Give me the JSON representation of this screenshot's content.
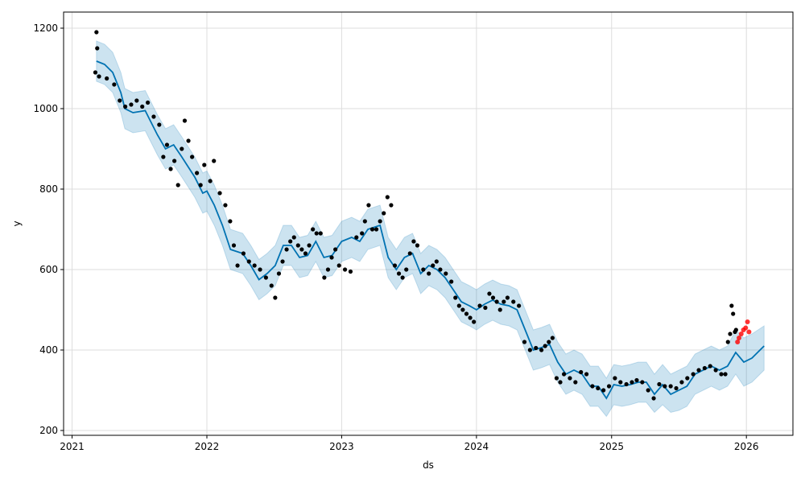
{
  "chart_data": {
    "type": "line",
    "title": "",
    "xlabel": "ds",
    "ylabel": "y",
    "xlim": [
      "2020-12-09",
      "2026-05-07"
    ],
    "ylim": [
      188,
      1240
    ],
    "yticks": [
      200,
      400,
      600,
      800,
      1000,
      1200
    ],
    "xticks": [
      "2021",
      "2022",
      "2023",
      "2024",
      "2025",
      "2026"
    ],
    "grid": true,
    "colors": {
      "forecast": "#0072B2",
      "band": "#0072B2",
      "actual": "#000000",
      "future_actual": "#ff0000"
    },
    "forecast": [
      [
        "2021-03-08",
        1118,
        1068,
        1168
      ],
      [
        "2021-03-30",
        1110,
        1060,
        1160
      ],
      [
        "2021-04-21",
        1090,
        1040,
        1140
      ],
      [
        "2021-05-13",
        1040,
        990,
        1090
      ],
      [
        "2021-05-24",
        1000,
        950,
        1050
      ],
      [
        "2021-06-15",
        990,
        940,
        1040
      ],
      [
        "2021-07-18",
        995,
        945,
        1045
      ],
      [
        "2021-07-29",
        975,
        925,
        1025
      ],
      [
        "2021-08-20",
        935,
        885,
        985
      ],
      [
        "2021-09-11",
        900,
        850,
        950
      ],
      [
        "2021-10-03",
        910,
        860,
        960
      ],
      [
        "2021-10-25",
        880,
        830,
        930
      ],
      [
        "2021-11-29",
        830,
        780,
        880
      ],
      [
        "2021-12-21",
        790,
        740,
        840
      ],
      [
        "2022-01-01",
        795,
        745,
        845
      ],
      [
        "2022-01-21",
        760,
        710,
        810
      ],
      [
        "2022-02-12",
        710,
        660,
        760
      ],
      [
        "2022-03-06",
        650,
        600,
        700
      ],
      [
        "2022-04-08",
        640,
        590,
        690
      ],
      [
        "2022-04-30",
        610,
        560,
        660
      ],
      [
        "2022-05-22",
        575,
        525,
        625
      ],
      [
        "2022-06-13",
        590,
        540,
        640
      ],
      [
        "2022-07-05",
        610,
        560,
        660
      ],
      [
        "2022-07-27",
        660,
        610,
        710
      ],
      [
        "2022-08-18",
        660,
        610,
        710
      ],
      [
        "2022-09-09",
        630,
        580,
        680
      ],
      [
        "2022-10-01",
        635,
        585,
        685
      ],
      [
        "2022-10-23",
        670,
        620,
        720
      ],
      [
        "2022-11-14",
        630,
        580,
        680
      ],
      [
        "2022-12-06",
        635,
        585,
        685
      ],
      [
        "2023-01-01",
        670,
        620,
        720
      ],
      [
        "2023-01-28",
        680,
        630,
        730
      ],
      [
        "2023-02-19",
        670,
        620,
        720
      ],
      [
        "2023-03-13",
        700,
        650,
        750
      ],
      [
        "2023-04-15",
        710,
        660,
        760
      ],
      [
        "2023-05-07",
        630,
        580,
        680
      ],
      [
        "2023-05-29",
        600,
        550,
        650
      ],
      [
        "2023-06-20",
        630,
        580,
        680
      ],
      [
        "2023-07-12",
        640,
        590,
        690
      ],
      [
        "2023-08-03",
        590,
        540,
        640
      ],
      [
        "2023-08-25",
        610,
        560,
        660
      ],
      [
        "2023-09-16",
        600,
        550,
        650
      ],
      [
        "2023-10-08",
        580,
        530,
        630
      ],
      [
        "2023-10-30",
        550,
        500,
        600
      ],
      [
        "2023-11-21",
        520,
        470,
        570
      ],
      [
        "2023-12-13",
        510,
        460,
        560
      ],
      [
        "2024-01-01",
        500,
        450,
        550
      ],
      [
        "2024-01-23",
        514,
        464,
        564
      ],
      [
        "2024-02-14",
        524,
        474,
        574
      ],
      [
        "2024-03-07",
        514,
        464,
        564
      ],
      [
        "2024-03-29",
        510,
        460,
        560
      ],
      [
        "2024-04-20",
        500,
        450,
        550
      ],
      [
        "2024-05-12",
        450,
        400,
        500
      ],
      [
        "2024-06-03",
        400,
        350,
        450
      ],
      [
        "2024-06-25",
        406,
        356,
        456
      ],
      [
        "2024-07-17",
        414,
        364,
        464
      ],
      [
        "2024-08-08",
        370,
        320,
        420
      ],
      [
        "2024-08-30",
        340,
        290,
        390
      ],
      [
        "2024-09-21",
        350,
        300,
        400
      ],
      [
        "2024-10-13",
        340,
        290,
        390
      ],
      [
        "2024-11-04",
        310,
        260,
        360
      ],
      [
        "2024-11-26",
        310,
        260,
        360
      ],
      [
        "2024-12-18",
        280,
        235,
        330
      ],
      [
        "2025-01-07",
        314,
        264,
        364
      ],
      [
        "2025-01-29",
        310,
        260,
        360
      ],
      [
        "2025-02-20",
        314,
        264,
        364
      ],
      [
        "2025-03-14",
        320,
        270,
        370
      ],
      [
        "2025-04-05",
        320,
        270,
        370
      ],
      [
        "2025-04-27",
        290,
        245,
        340
      ],
      [
        "2025-05-19",
        314,
        264,
        364
      ],
      [
        "2025-06-10",
        290,
        245,
        340
      ],
      [
        "2025-07-02",
        300,
        250,
        350
      ],
      [
        "2025-07-24",
        310,
        260,
        360
      ],
      [
        "2025-08-15",
        340,
        290,
        390
      ],
      [
        "2025-09-06",
        350,
        300,
        400
      ],
      [
        "2025-09-28",
        360,
        310,
        410
      ],
      [
        "2025-10-20",
        350,
        300,
        400
      ],
      [
        "2025-11-11",
        360,
        310,
        410
      ],
      [
        "2025-12-03",
        394,
        340,
        450
      ],
      [
        "2025-12-25",
        370,
        310,
        430
      ],
      [
        "2026-01-16",
        380,
        320,
        440
      ],
      [
        "2026-02-18",
        410,
        350,
        460
      ]
    ],
    "actual": [
      [
        "2021-03-05",
        1090
      ],
      [
        "2021-03-08",
        1190
      ],
      [
        "2021-03-10",
        1150
      ],
      [
        "2021-03-15",
        1080
      ],
      [
        "2021-04-05",
        1075
      ],
      [
        "2021-04-25",
        1060
      ],
      [
        "2021-05-10",
        1020
      ],
      [
        "2021-05-25",
        1005
      ],
      [
        "2021-06-10",
        1010
      ],
      [
        "2021-06-25",
        1020
      ],
      [
        "2021-07-10",
        1005
      ],
      [
        "2021-07-25",
        1015
      ],
      [
        "2021-08-10",
        980
      ],
      [
        "2021-08-25",
        960
      ],
      [
        "2021-09-05",
        880
      ],
      [
        "2021-09-15",
        910
      ],
      [
        "2021-09-25",
        850
      ],
      [
        "2021-10-05",
        870
      ],
      [
        "2021-10-15",
        810
      ],
      [
        "2021-10-25",
        900
      ],
      [
        "2021-11-02",
        970
      ],
      [
        "2021-11-12",
        920
      ],
      [
        "2021-11-22",
        880
      ],
      [
        "2021-12-05",
        840
      ],
      [
        "2021-12-15",
        810
      ],
      [
        "2021-12-25",
        860
      ],
      [
        "2022-01-10",
        820
      ],
      [
        "2022-01-20",
        870
      ],
      [
        "2022-02-05",
        790
      ],
      [
        "2022-02-20",
        760
      ],
      [
        "2022-03-05",
        720
      ],
      [
        "2022-03-15",
        660
      ],
      [
        "2022-03-25",
        610
      ],
      [
        "2022-04-10",
        640
      ],
      [
        "2022-04-25",
        620
      ],
      [
        "2022-05-10",
        610
      ],
      [
        "2022-05-25",
        600
      ],
      [
        "2022-06-10",
        580
      ],
      [
        "2022-06-25",
        560
      ],
      [
        "2022-07-05",
        530
      ],
      [
        "2022-07-15",
        590
      ],
      [
        "2022-07-25",
        620
      ],
      [
        "2022-08-05",
        650
      ],
      [
        "2022-08-15",
        670
      ],
      [
        "2022-08-25",
        680
      ],
      [
        "2022-09-05",
        660
      ],
      [
        "2022-09-15",
        650
      ],
      [
        "2022-09-25",
        640
      ],
      [
        "2022-10-05",
        660
      ],
      [
        "2022-10-15",
        700
      ],
      [
        "2022-10-25",
        690
      ],
      [
        "2022-11-05",
        690
      ],
      [
        "2022-11-15",
        580
      ],
      [
        "2022-11-25",
        600
      ],
      [
        "2022-12-05",
        630
      ],
      [
        "2022-12-15",
        650
      ],
      [
        "2022-12-25",
        610
      ],
      [
        "2023-01-10",
        600
      ],
      [
        "2023-01-25",
        595
      ],
      [
        "2023-02-10",
        680
      ],
      [
        "2023-02-25",
        690
      ],
      [
        "2023-03-05",
        720
      ],
      [
        "2023-03-15",
        760
      ],
      [
        "2023-03-25",
        700
      ],
      [
        "2023-04-05",
        700
      ],
      [
        "2023-04-15",
        720
      ],
      [
        "2023-04-25",
        740
      ],
      [
        "2023-05-05",
        780
      ],
      [
        "2023-05-15",
        760
      ],
      [
        "2023-05-25",
        610
      ],
      [
        "2023-06-05",
        590
      ],
      [
        "2023-06-15",
        580
      ],
      [
        "2023-06-25",
        600
      ],
      [
        "2023-07-05",
        640
      ],
      [
        "2023-07-15",
        670
      ],
      [
        "2023-07-25",
        660
      ],
      [
        "2023-08-10",
        600
      ],
      [
        "2023-08-25",
        590
      ],
      [
        "2023-09-05",
        610
      ],
      [
        "2023-09-15",
        620
      ],
      [
        "2023-09-25",
        600
      ],
      [
        "2023-10-10",
        590
      ],
      [
        "2023-10-25",
        570
      ],
      [
        "2023-11-05",
        530
      ],
      [
        "2023-11-15",
        510
      ],
      [
        "2023-11-25",
        500
      ],
      [
        "2023-12-05",
        490
      ],
      [
        "2023-12-15",
        480
      ],
      [
        "2023-12-25",
        470
      ],
      [
        "2024-01-10",
        510
      ],
      [
        "2024-01-25",
        505
      ],
      [
        "2024-02-05",
        540
      ],
      [
        "2024-02-15",
        530
      ],
      [
        "2024-02-25",
        520
      ],
      [
        "2024-03-05",
        500
      ],
      [
        "2024-03-15",
        520
      ],
      [
        "2024-03-25",
        530
      ],
      [
        "2024-04-10",
        520
      ],
      [
        "2024-04-25",
        510
      ],
      [
        "2024-05-10",
        420
      ],
      [
        "2024-05-25",
        400
      ],
      [
        "2024-06-10",
        405
      ],
      [
        "2024-06-25",
        400
      ],
      [
        "2024-07-05",
        410
      ],
      [
        "2024-07-15",
        420
      ],
      [
        "2024-07-25",
        430
      ],
      [
        "2024-08-05",
        330
      ],
      [
        "2024-08-15",
        320
      ],
      [
        "2024-08-25",
        340
      ],
      [
        "2024-09-10",
        330
      ],
      [
        "2024-09-25",
        320
      ],
      [
        "2024-10-10",
        345
      ],
      [
        "2024-10-25",
        340
      ],
      [
        "2024-11-10",
        310
      ],
      [
        "2024-11-25",
        305
      ],
      [
        "2024-12-10",
        300
      ],
      [
        "2024-12-25",
        310
      ],
      [
        "2025-01-10",
        330
      ],
      [
        "2025-01-25",
        320
      ],
      [
        "2025-02-10",
        315
      ],
      [
        "2025-02-25",
        320
      ],
      [
        "2025-03-10",
        325
      ],
      [
        "2025-03-25",
        320
      ],
      [
        "2025-04-10",
        300
      ],
      [
        "2025-04-25",
        280
      ],
      [
        "2025-05-10",
        315
      ],
      [
        "2025-05-25",
        310
      ],
      [
        "2025-06-10",
        310
      ],
      [
        "2025-06-25",
        305
      ],
      [
        "2025-07-10",
        320
      ],
      [
        "2025-07-25",
        330
      ],
      [
        "2025-08-10",
        340
      ],
      [
        "2025-08-25",
        350
      ],
      [
        "2025-09-10",
        355
      ],
      [
        "2025-09-25",
        360
      ],
      [
        "2025-10-10",
        350
      ],
      [
        "2025-10-25",
        340
      ],
      [
        "2025-11-05",
        340
      ],
      [
        "2025-11-12",
        420
      ],
      [
        "2025-11-18",
        440
      ],
      [
        "2025-11-22",
        510
      ],
      [
        "2025-11-26",
        490
      ],
      [
        "2025-12-01",
        445
      ],
      [
        "2025-12-04",
        450
      ]
    ],
    "future_actual": [
      [
        "2025-12-08",
        420
      ],
      [
        "2025-12-12",
        430
      ],
      [
        "2025-12-18",
        440
      ],
      [
        "2025-12-24",
        450
      ],
      [
        "2025-12-30",
        455
      ],
      [
        "2026-01-04",
        470
      ],
      [
        "2026-01-08",
        445
      ]
    ]
  }
}
